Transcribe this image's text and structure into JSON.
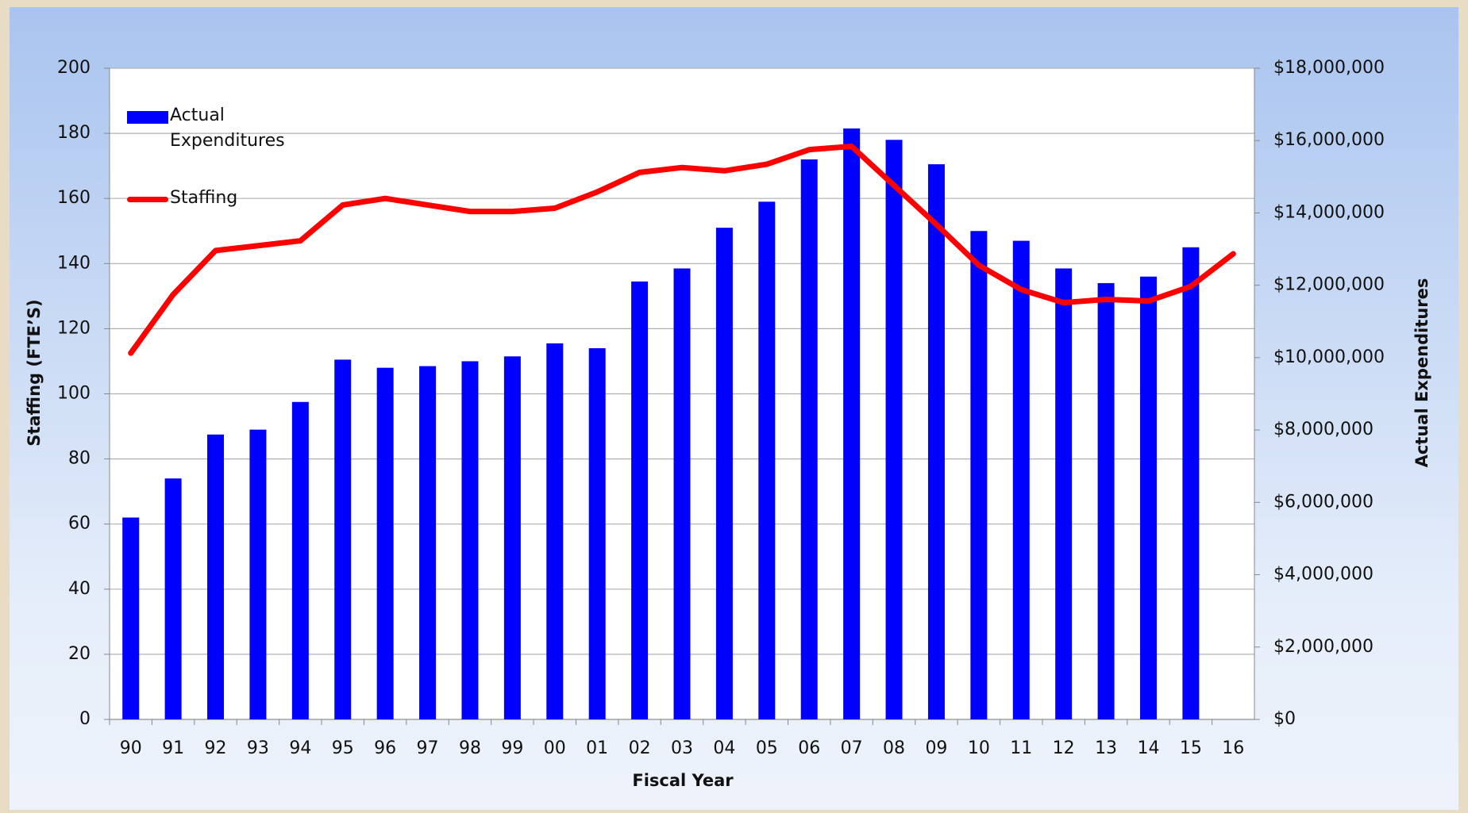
{
  "chart_data": {
    "type": "bar",
    "x_label": "Fiscal Year",
    "y_label": "Staffing (FTE’S)",
    "y2_label": "Actual Expenditures",
    "categories": [
      "90",
      "91",
      "92",
      "93",
      "94",
      "95",
      "96",
      "97",
      "98",
      "99",
      "00",
      "01",
      "02",
      "03",
      "04",
      "05",
      "06",
      "07",
      "08",
      "09",
      "10",
      "11",
      "12",
      "13",
      "14",
      "15",
      "16"
    ],
    "series": [
      {
        "name": "Actual Expenditures",
        "type": "bar",
        "color": "#0000ff",
        "axis": "y2",
        "values": [
          5580000,
          6660000,
          7875000,
          8010000,
          8775000,
          9945000,
          9720000,
          9765000,
          9900000,
          10035000,
          10395000,
          10260000,
          12105000,
          12465000,
          13590000,
          14310000,
          15480000,
          16335000,
          16020000,
          15345000,
          13500000,
          13230000,
          12465000,
          12060000,
          12240000,
          13050000,
          null
        ]
      },
      {
        "name": "Staffing",
        "type": "line",
        "color": "#ff0000",
        "values": [
          112.5,
          130.5,
          144,
          145.5,
          147,
          158,
          160,
          158,
          156,
          156,
          157,
          162,
          168,
          169.5,
          168.5,
          170.5,
          175,
          176,
          164,
          152,
          139.5,
          132,
          128,
          129,
          128.5,
          133,
          143
        ]
      }
    ],
    "ylim": [
      0,
      200
    ],
    "yticks": [
      0,
      20,
      40,
      60,
      80,
      100,
      120,
      140,
      160,
      180,
      200
    ],
    "y2lim": [
      0,
      18000000
    ],
    "y2ticks": [
      {
        "value": 0,
        "label": "$0"
      },
      {
        "value": 2000000,
        "label": "$2,000,000"
      },
      {
        "value": 4000000,
        "label": "$4,000,000"
      },
      {
        "value": 6000000,
        "label": "$6,000,000"
      },
      {
        "value": 8000000,
        "label": "$8,000,000"
      },
      {
        "value": 10000000,
        "label": "$10,000,000"
      },
      {
        "value": 12000000,
        "label": "$12,000,000"
      },
      {
        "value": 14000000,
        "label": "$14,000,000"
      },
      {
        "value": 16000000,
        "label": "$16,000,000"
      },
      {
        "value": 18000000,
        "label": "$18,000,000"
      }
    ],
    "grid": true,
    "legend": "upper left"
  }
}
